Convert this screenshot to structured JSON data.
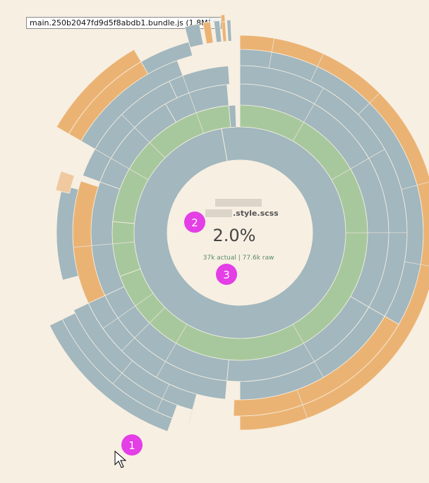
{
  "bundle_select": {
    "selected": "main.250b2047fd9d5f8abdb1.bundle.js (1.8M)"
  },
  "center": {
    "name": ".style.scss",
    "percent": "2.0%",
    "actual": "37k actual",
    "raw": "77.6k raw",
    "separator": " | "
  },
  "badges": [
    "1",
    "2",
    "3"
  ],
  "colors": {
    "background": "#f7efe2",
    "blue": "#a2b7be",
    "green": "#a7c89d",
    "orange": "#ebb373",
    "orange_light": "#f0c9a0",
    "badge": "#e43ee6",
    "center_size_text": "#5a8a6a"
  }
}
